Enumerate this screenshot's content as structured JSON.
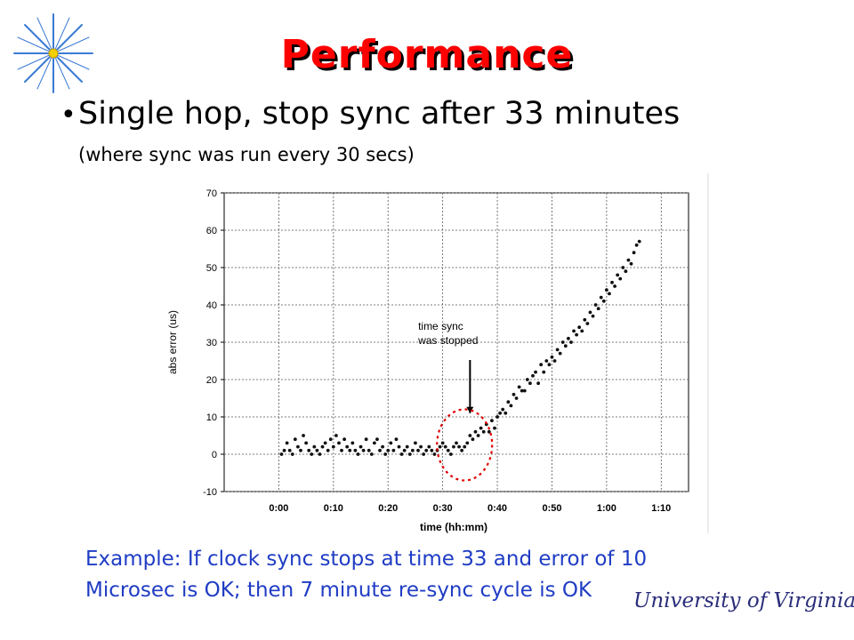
{
  "slide": {
    "title": "Performance",
    "bullet": "Single hop, stop sync after 33 minutes",
    "sub_bullet": "(where sync was run every 30 secs)",
    "caption_line1": "Example: If clock sync stops at time 33 and error of 10",
    "caption_line2": "Microsec is OK; then 7 minute re-sync cycle is OK",
    "footer_logo": "University of Virginia",
    "colors": {
      "title": "#ff0000",
      "caption": "#1f3cc4",
      "annotation_circle": "#e00000",
      "logo_star": "#3a7bd5"
    },
    "icons": [
      "star-burst-logo-icon"
    ]
  },
  "chart_data": {
    "type": "scatter",
    "xlabel": "time (hh:mm)",
    "ylabel": "abs error (us)",
    "ylim": [
      -10,
      70
    ],
    "y_ticks": [
      "-10",
      "0",
      "10",
      "20",
      "30",
      "40",
      "50",
      "60",
      "70"
    ],
    "x_ticks_minutes": [
      0,
      10,
      20,
      30,
      40,
      50,
      60,
      70
    ],
    "x_tick_labels": [
      "0:00",
      "0:10",
      "0:20",
      "0:30",
      "0:40",
      "0:50",
      "1:00",
      "1:10"
    ],
    "xlim_minutes": [
      -10,
      75
    ],
    "grid": true,
    "annotation": {
      "text_line1": "time sync",
      "text_line2": "was stopped",
      "at_minute": 33
    },
    "series": [
      {
        "marker": "dot",
        "points": [
          [
            0.5,
            0
          ],
          [
            1,
            1
          ],
          [
            1.5,
            3
          ],
          [
            2,
            1
          ],
          [
            2.5,
            0
          ],
          [
            3,
            4
          ],
          [
            3.5,
            2
          ],
          [
            4,
            1
          ],
          [
            4.5,
            5
          ],
          [
            5,
            3
          ],
          [
            5.5,
            1
          ],
          [
            6,
            0
          ],
          [
            6.5,
            2
          ],
          [
            7,
            1
          ],
          [
            7.5,
            0
          ],
          [
            8,
            2
          ],
          [
            8.5,
            3
          ],
          [
            9,
            1
          ],
          [
            9.5,
            4
          ],
          [
            10,
            2
          ],
          [
            10.5,
            5
          ],
          [
            11,
            3
          ],
          [
            11.5,
            1
          ],
          [
            12,
            4
          ],
          [
            12.5,
            2
          ],
          [
            13,
            1
          ],
          [
            13.5,
            3
          ],
          [
            14,
            1
          ],
          [
            14.5,
            0
          ],
          [
            15,
            2
          ],
          [
            15.5,
            1
          ],
          [
            16,
            4
          ],
          [
            16.5,
            1
          ],
          [
            17,
            0
          ],
          [
            17.5,
            3
          ],
          [
            18,
            4
          ],
          [
            18.5,
            1
          ],
          [
            19,
            2
          ],
          [
            19.5,
            0
          ],
          [
            20,
            1
          ],
          [
            20.5,
            3
          ],
          [
            21,
            1
          ],
          [
            21.5,
            4
          ],
          [
            22,
            2
          ],
          [
            22.5,
            0
          ],
          [
            23,
            1
          ],
          [
            23.5,
            2
          ],
          [
            24,
            0
          ],
          [
            24.5,
            1
          ],
          [
            25,
            3
          ],
          [
            25.5,
            1
          ],
          [
            26,
            2
          ],
          [
            26.5,
            0
          ],
          [
            27,
            1
          ],
          [
            27.5,
            2
          ],
          [
            28,
            1
          ],
          [
            28.5,
            0
          ],
          [
            29,
            1
          ],
          [
            29.5,
            2
          ],
          [
            30,
            3
          ],
          [
            30.5,
            2
          ],
          [
            31,
            1
          ],
          [
            31.5,
            0
          ],
          [
            32,
            2
          ],
          [
            32.5,
            3
          ],
          [
            33,
            2
          ],
          [
            33.5,
            1
          ],
          [
            34,
            2
          ],
          [
            34.5,
            3
          ],
          [
            35,
            5
          ],
          [
            35.5,
            4
          ],
          [
            36,
            6
          ],
          [
            36.5,
            5
          ],
          [
            37,
            7
          ],
          [
            37.5,
            6
          ],
          [
            38,
            8
          ],
          [
            38.5,
            6
          ],
          [
            39,
            9
          ],
          [
            39.5,
            7
          ],
          [
            40,
            10
          ],
          [
            40.5,
            11
          ],
          [
            41,
            12
          ],
          [
            41.5,
            11
          ],
          [
            42,
            14
          ],
          [
            42.5,
            13
          ],
          [
            43,
            16
          ],
          [
            43.5,
            15
          ],
          [
            44,
            18
          ],
          [
            44.5,
            17
          ],
          [
            45,
            17
          ],
          [
            45.5,
            20
          ],
          [
            46,
            19
          ],
          [
            46.5,
            21
          ],
          [
            47,
            22
          ],
          [
            47.5,
            19
          ],
          [
            48,
            24
          ],
          [
            48.5,
            22
          ],
          [
            49,
            25
          ],
          [
            49.5,
            24
          ],
          [
            50,
            26
          ],
          [
            50.5,
            25
          ],
          [
            51,
            28
          ],
          [
            51.5,
            27
          ],
          [
            52,
            30
          ],
          [
            52.5,
            29
          ],
          [
            53,
            31
          ],
          [
            53.5,
            30
          ],
          [
            54,
            33
          ],
          [
            54.5,
            32
          ],
          [
            55,
            34
          ],
          [
            55.5,
            33
          ],
          [
            56,
            36
          ],
          [
            56.5,
            35
          ],
          [
            57,
            38
          ],
          [
            57.5,
            37
          ],
          [
            58,
            40
          ],
          [
            58.5,
            39
          ],
          [
            59,
            42
          ],
          [
            59.5,
            41
          ],
          [
            60,
            44
          ],
          [
            60.5,
            43
          ],
          [
            61,
            46
          ],
          [
            61.5,
            45
          ],
          [
            62,
            48
          ],
          [
            62.5,
            47
          ],
          [
            63,
            50
          ],
          [
            63.5,
            49
          ],
          [
            64,
            52
          ],
          [
            64.5,
            51
          ],
          [
            65,
            54
          ],
          [
            65.5,
            56
          ],
          [
            66,
            57
          ]
        ]
      }
    ]
  }
}
